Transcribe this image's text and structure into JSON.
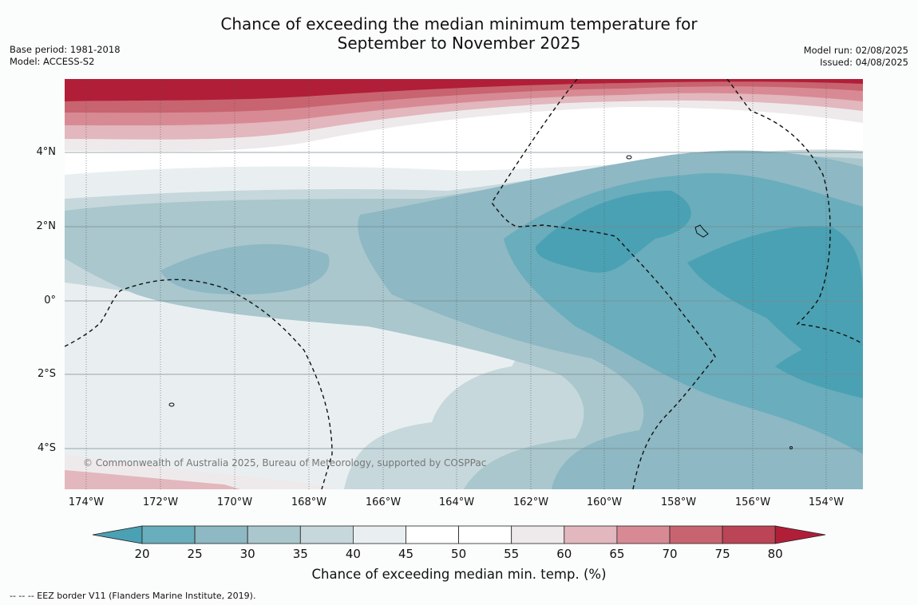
{
  "title_line1": "Chance of exceeding the median minimum temperature for",
  "title_line2": "September to November 2025",
  "meta_left": {
    "base_period": "Base period: 1981-2018",
    "model": "Model: ACCESS-S2"
  },
  "meta_right": {
    "model_run": "Model run: 02/08/2025",
    "issued": "Issued: 04/08/2025"
  },
  "lat_labels": [
    "4°N",
    "2°N",
    "0°",
    "2°S",
    "4°S"
  ],
  "lon_labels": [
    "174°W",
    "172°W",
    "170°W",
    "168°W",
    "166°W",
    "164°W",
    "162°W",
    "160°W",
    "158°W",
    "156°W",
    "154°W"
  ],
  "copyright": "© Commonwealth of Australia 2025, Bureau of Meteorology, supported by COSPPac",
  "colorbar": {
    "ticks": [
      "20",
      "25",
      "30",
      "35",
      "40",
      "45",
      "50",
      "55",
      "60",
      "65",
      "70",
      "75",
      "80"
    ],
    "colors": [
      "#4aa1b3",
      "#6aadbc",
      "#8db8c4",
      "#a9c7cd",
      "#c6d8dc",
      "#e9eff1",
      "#ffffff",
      "#ffffff",
      "#eeeaeb",
      "#e2b7bd",
      "#d88a94",
      "#c8646f",
      "#bb4556",
      "#b11e38"
    ],
    "label": "Chance of exceeding median min. temp. (%)"
  },
  "footnote": "--  --  -- EEZ border V11 (Flanders Marine Institute, 2019)."
}
